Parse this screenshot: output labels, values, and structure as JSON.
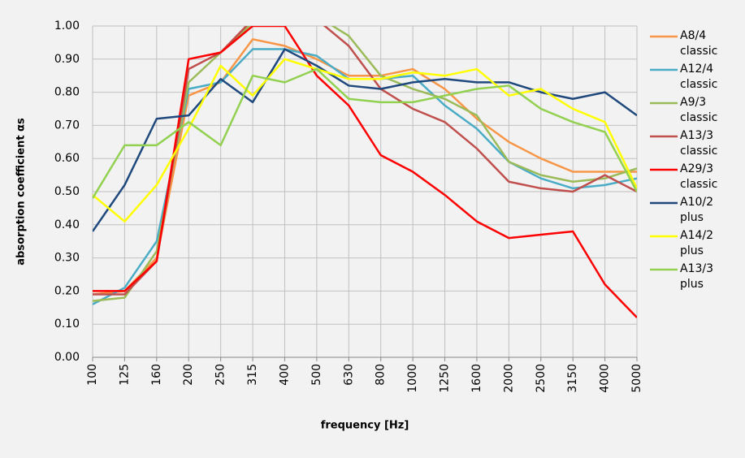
{
  "chart_data": {
    "type": "line",
    "x_label": "frequency [Hz]",
    "y_label": "absorption coefficient αs",
    "categories": [
      "100",
      "125",
      "160",
      "200",
      "250",
      "315",
      "400",
      "500",
      "630",
      "800",
      "1000",
      "1250",
      "1600",
      "2000",
      "2500",
      "3150",
      "4000",
      "5000"
    ],
    "ylim": [
      0,
      1
    ],
    "yticks": [
      {
        "value": 0,
        "label": "0.00"
      },
      {
        "value": 0.1,
        "label": "0.10"
      },
      {
        "value": 0.2,
        "label": "0.20"
      },
      {
        "value": 0.3,
        "label": "0.30"
      },
      {
        "value": 0.4,
        "label": "0.40"
      },
      {
        "value": 0.5,
        "label": "0.50"
      },
      {
        "value": 0.6,
        "label": "0.60"
      },
      {
        "value": 0.7,
        "label": "0.70"
      },
      {
        "value": 0.8,
        "label": "0.80"
      },
      {
        "value": 0.9,
        "label": "0.90"
      },
      {
        "value": 1,
        "label": "1.00"
      }
    ],
    "grid": true,
    "legend": "right",
    "series": [
      {
        "name": "A8/4 classic",
        "color": "#f79646",
        "values": [
          0.19,
          0.2,
          0.3,
          0.79,
          0.83,
          0.96,
          0.94,
          0.9,
          0.85,
          0.85,
          0.87,
          0.81,
          0.72,
          0.65,
          0.6,
          0.56,
          0.56,
          0.56
        ]
      },
      {
        "name": "A12/4 classic",
        "color": "#4bacc6",
        "values": [
          0.16,
          0.21,
          0.35,
          0.81,
          0.83,
          0.93,
          0.93,
          0.91,
          0.84,
          0.84,
          0.85,
          0.76,
          0.69,
          0.59,
          0.54,
          0.51,
          0.52,
          0.54
        ]
      },
      {
        "name": "A9/3 classic",
        "color": "#9bbb59",
        "values": [
          0.17,
          0.18,
          0.32,
          0.83,
          0.92,
          1.01,
          1.05,
          1.03,
          0.97,
          0.85,
          0.81,
          0.78,
          0.73,
          0.59,
          0.55,
          0.53,
          0.54,
          0.57
        ]
      },
      {
        "name": "A13/3 classic",
        "color": "#c0504d",
        "values": [
          0.19,
          0.19,
          0.29,
          0.87,
          0.92,
          1.02,
          1.08,
          1.02,
          0.94,
          0.81,
          0.75,
          0.71,
          0.63,
          0.53,
          0.51,
          0.5,
          0.55,
          0.5
        ]
      },
      {
        "name": "A29/3 classic",
        "color": "#ff0000",
        "values": [
          0.2,
          0.2,
          0.29,
          0.9,
          0.92,
          1.0,
          1.0,
          0.85,
          0.76,
          0.61,
          0.56,
          0.49,
          0.41,
          0.36,
          0.37,
          0.38,
          0.22,
          0.12
        ]
      },
      {
        "name": "A10/2 plus",
        "color": "#1f497d",
        "values": [
          0.38,
          0.52,
          0.72,
          0.73,
          0.84,
          0.77,
          0.93,
          0.88,
          0.82,
          0.81,
          0.83,
          0.84,
          0.83,
          0.83,
          0.8,
          0.78,
          0.8,
          0.73
        ]
      },
      {
        "name": "A14/2 plus",
        "color": "#ffff00",
        "values": [
          0.49,
          0.41,
          0.52,
          0.69,
          0.88,
          0.79,
          0.9,
          0.87,
          0.84,
          0.84,
          0.86,
          0.85,
          0.87,
          0.79,
          0.81,
          0.75,
          0.71,
          0.51
        ]
      },
      {
        "name": "A13/3 plus",
        "color": "#92d050",
        "values": [
          0.48,
          0.64,
          0.64,
          0.71,
          0.64,
          0.85,
          0.83,
          0.87,
          0.78,
          0.77,
          0.77,
          0.79,
          0.81,
          0.82,
          0.75,
          0.71,
          0.68,
          0.5
        ]
      }
    ]
  }
}
